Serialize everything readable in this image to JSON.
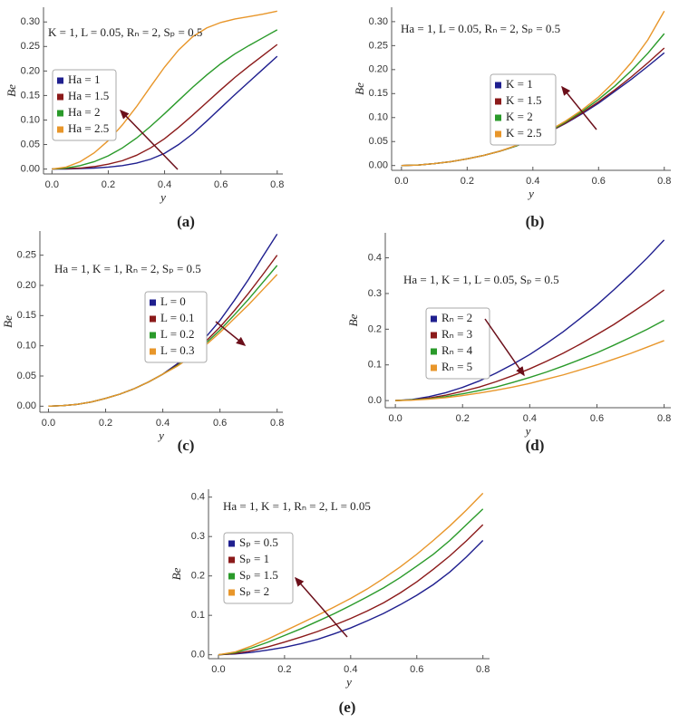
{
  "chart_data": [
    {
      "type": "line",
      "panel_label": "(a)",
      "annotation": "K = 1, L = 0.05, Rₙ = 2, Sₚ = 0.5",
      "x_label": "y",
      "y_label": "Be",
      "x": [
        0,
        0.05,
        0.1,
        0.15,
        0.2,
        0.25,
        0.3,
        0.35,
        0.4,
        0.45,
        0.5,
        0.55,
        0.6,
        0.65,
        0.7,
        0.75,
        0.8
      ],
      "series": [
        {
          "name": "Ha = 1",
          "color": "#1f1f8f",
          "values": [
            0,
            0,
            0.001,
            0.002,
            0.004,
            0.007,
            0.012,
            0.02,
            0.032,
            0.05,
            0.072,
            0.098,
            0.125,
            0.152,
            0.178,
            0.204,
            0.23
          ]
        },
        {
          "name": "Ha = 1.5",
          "color": "#8b1a1a",
          "values": [
            0,
            0.001,
            0.002,
            0.005,
            0.01,
            0.017,
            0.028,
            0.043,
            0.062,
            0.085,
            0.11,
            0.136,
            0.162,
            0.187,
            0.21,
            0.232,
            0.254
          ]
        },
        {
          "name": "Ha = 2",
          "color": "#2a9a2a",
          "values": [
            0,
            0.002,
            0.007,
            0.015,
            0.027,
            0.043,
            0.063,
            0.087,
            0.113,
            0.14,
            0.167,
            0.192,
            0.215,
            0.235,
            0.252,
            0.268,
            0.284
          ]
        },
        {
          "name": "Ha = 2.5",
          "color": "#e8962a",
          "values": [
            0,
            0.004,
            0.015,
            0.033,
            0.058,
            0.09,
            0.127,
            0.168,
            0.208,
            0.243,
            0.27,
            0.288,
            0.299,
            0.306,
            0.311,
            0.316,
            0.322
          ]
        }
      ],
      "xlim": [
        -0.03,
        0.82
      ],
      "ylim": [
        -0.01,
        0.33
      ],
      "xticks": [
        {
          "value": 0,
          "label": "0.0"
        },
        {
          "value": 0.2,
          "label": "0.2"
        },
        {
          "value": 0.4,
          "label": "0.4"
        },
        {
          "value": 0.6,
          "label": "0.6"
        },
        {
          "value": 0.8,
          "label": "0.8"
        }
      ],
      "yticks": [
        {
          "value": 0,
          "label": "0.00"
        },
        {
          "value": 0.05,
          "label": "0.05"
        },
        {
          "value": 0.1,
          "label": "0.10"
        },
        {
          "value": 0.15,
          "label": "0.15"
        },
        {
          "value": 0.2,
          "label": "0.20"
        },
        {
          "value": 0.25,
          "label": "0.25"
        },
        {
          "value": 0.3,
          "label": "0.30"
        }
      ]
    },
    {
      "type": "line",
      "panel_label": "(b)",
      "annotation": "Ha = 1, L = 0.05, Rₙ = 2, Sₚ = 0.5",
      "x_label": "y",
      "y_label": "Be",
      "x": [
        0,
        0.05,
        0.1,
        0.15,
        0.2,
        0.25,
        0.3,
        0.35,
        0.4,
        0.45,
        0.5,
        0.55,
        0.6,
        0.65,
        0.7,
        0.75,
        0.8
      ],
      "series": [
        {
          "name": "K = 1",
          "color": "#1f1f8f",
          "values": [
            0,
            0.001,
            0.004,
            0.008,
            0.014,
            0.021,
            0.03,
            0.041,
            0.054,
            0.07,
            0.088,
            0.108,
            0.13,
            0.155,
            0.18,
            0.207,
            0.235
          ]
        },
        {
          "name": "K = 1.5",
          "color": "#8b1a1a",
          "values": [
            0,
            0.001,
            0.004,
            0.008,
            0.014,
            0.021,
            0.03,
            0.041,
            0.054,
            0.07,
            0.089,
            0.11,
            0.133,
            0.158,
            0.185,
            0.214,
            0.245
          ]
        },
        {
          "name": "K = 2",
          "color": "#2a9a2a",
          "values": [
            0,
            0.001,
            0.004,
            0.008,
            0.014,
            0.021,
            0.03,
            0.041,
            0.055,
            0.071,
            0.091,
            0.113,
            0.138,
            0.166,
            0.198,
            0.234,
            0.275
          ]
        },
        {
          "name": "K = 2.5",
          "color": "#e8962a",
          "values": [
            0,
            0.001,
            0.004,
            0.008,
            0.014,
            0.021,
            0.03,
            0.042,
            0.056,
            0.073,
            0.093,
            0.116,
            0.143,
            0.176,
            0.215,
            0.262,
            0.322
          ]
        }
      ],
      "xlim": [
        -0.03,
        0.82
      ],
      "ylim": [
        -0.01,
        0.33
      ],
      "xticks": [
        {
          "value": 0,
          "label": "0.0"
        },
        {
          "value": 0.2,
          "label": "0.2"
        },
        {
          "value": 0.4,
          "label": "0.4"
        },
        {
          "value": 0.6,
          "label": "0.6"
        },
        {
          "value": 0.8,
          "label": "0.8"
        }
      ],
      "yticks": [
        {
          "value": 0,
          "label": "0.00"
        },
        {
          "value": 0.05,
          "label": "0.05"
        },
        {
          "value": 0.1,
          "label": "0.10"
        },
        {
          "value": 0.15,
          "label": "0.15"
        },
        {
          "value": 0.2,
          "label": "0.20"
        },
        {
          "value": 0.25,
          "label": "0.25"
        },
        {
          "value": 0.3,
          "label": "0.30"
        }
      ]
    },
    {
      "type": "line",
      "panel_label": "(c)",
      "annotation": "Ha = 1, K = 1, Rₙ = 2, Sₚ = 0.5",
      "x_label": "y",
      "y_label": "Be",
      "x": [
        0,
        0.05,
        0.1,
        0.15,
        0.2,
        0.25,
        0.3,
        0.35,
        0.4,
        0.45,
        0.5,
        0.55,
        0.6,
        0.65,
        0.7,
        0.75,
        0.8
      ],
      "series": [
        {
          "name": "L = 0",
          "color": "#1f1f8f",
          "values": [
            0,
            0.001,
            0.003,
            0.007,
            0.013,
            0.02,
            0.029,
            0.04,
            0.053,
            0.07,
            0.09,
            0.114,
            0.142,
            0.175,
            0.21,
            0.248,
            0.285
          ]
        },
        {
          "name": "L = 0.1",
          "color": "#8b1a1a",
          "values": [
            0,
            0.001,
            0.003,
            0.007,
            0.013,
            0.02,
            0.029,
            0.04,
            0.053,
            0.068,
            0.086,
            0.107,
            0.131,
            0.158,
            0.187,
            0.218,
            0.25
          ]
        },
        {
          "name": "L = 0.2",
          "color": "#2a9a2a",
          "values": [
            0,
            0.001,
            0.003,
            0.007,
            0.013,
            0.02,
            0.029,
            0.04,
            0.053,
            0.067,
            0.084,
            0.104,
            0.126,
            0.151,
            0.177,
            0.205,
            0.233
          ]
        },
        {
          "name": "L = 0.3",
          "color": "#e8962a",
          "values": [
            0,
            0.001,
            0.003,
            0.007,
            0.013,
            0.02,
            0.029,
            0.04,
            0.053,
            0.066,
            0.082,
            0.101,
            0.122,
            0.145,
            0.168,
            0.193,
            0.218
          ]
        }
      ],
      "xlim": [
        -0.03,
        0.82
      ],
      "ylim": [
        -0.01,
        0.29
      ],
      "xticks": [
        {
          "value": 0,
          "label": "0.0"
        },
        {
          "value": 0.2,
          "label": "0.2"
        },
        {
          "value": 0.4,
          "label": "0.4"
        },
        {
          "value": 0.6,
          "label": "0.6"
        },
        {
          "value": 0.8,
          "label": "0.8"
        }
      ],
      "yticks": [
        {
          "value": 0,
          "label": "0.00"
        },
        {
          "value": 0.05,
          "label": "0.05"
        },
        {
          "value": 0.1,
          "label": "0.10"
        },
        {
          "value": 0.15,
          "label": "0.15"
        },
        {
          "value": 0.2,
          "label": "0.20"
        },
        {
          "value": 0.25,
          "label": "0.25"
        }
      ]
    },
    {
      "type": "line",
      "panel_label": "(d)",
      "annotation": "Ha = 1, K = 1, L = 0.05, Sₚ = 0.5",
      "x_label": "y",
      "y_label": "Be",
      "x": [
        0,
        0.05,
        0.1,
        0.15,
        0.2,
        0.25,
        0.3,
        0.35,
        0.4,
        0.45,
        0.5,
        0.55,
        0.6,
        0.65,
        0.7,
        0.75,
        0.8
      ],
      "series": [
        {
          "name": "Rₙ = 2",
          "color": "#1f1f8f",
          "values": [
            0,
            0.003,
            0.011,
            0.022,
            0.037,
            0.055,
            0.077,
            0.102,
            0.129,
            0.16,
            0.193,
            0.23,
            0.268,
            0.31,
            0.354,
            0.4,
            0.45
          ]
        },
        {
          "name": "Rₙ = 3",
          "color": "#8b1a1a",
          "values": [
            0,
            0.002,
            0.007,
            0.015,
            0.026,
            0.038,
            0.053,
            0.07,
            0.089,
            0.11,
            0.133,
            0.158,
            0.185,
            0.213,
            0.244,
            0.276,
            0.31
          ]
        },
        {
          "name": "Rₙ = 4",
          "color": "#2a9a2a",
          "values": [
            0,
            0.002,
            0.005,
            0.011,
            0.019,
            0.028,
            0.038,
            0.051,
            0.065,
            0.08,
            0.097,
            0.115,
            0.134,
            0.155,
            0.177,
            0.2,
            0.225
          ]
        },
        {
          "name": "Rₙ = 5",
          "color": "#e8962a",
          "values": [
            0,
            0.001,
            0.004,
            0.008,
            0.014,
            0.021,
            0.029,
            0.038,
            0.048,
            0.06,
            0.072,
            0.086,
            0.1,
            0.116,
            0.132,
            0.15,
            0.168
          ]
        }
      ],
      "xlim": [
        -0.03,
        0.82
      ],
      "ylim": [
        -0.02,
        0.47
      ],
      "xticks": [
        {
          "value": 0,
          "label": "0.0"
        },
        {
          "value": 0.2,
          "label": "0.2"
        },
        {
          "value": 0.4,
          "label": "0.4"
        },
        {
          "value": 0.6,
          "label": "0.6"
        },
        {
          "value": 0.8,
          "label": "0.8"
        }
      ],
      "yticks": [
        {
          "value": 0,
          "label": "0.0"
        },
        {
          "value": 0.1,
          "label": "0.1"
        },
        {
          "value": 0.2,
          "label": "0.2"
        },
        {
          "value": 0.3,
          "label": "0.3"
        },
        {
          "value": 0.4,
          "label": "0.4"
        }
      ]
    },
    {
      "type": "line",
      "panel_label": "(e)",
      "annotation": "Ha = 1, K = 1, Rₙ = 2, L = 0.05",
      "x_label": "y",
      "y_label": "Be",
      "x": [
        0,
        0.05,
        0.1,
        0.15,
        0.2,
        0.25,
        0.3,
        0.35,
        0.4,
        0.45,
        0.5,
        0.55,
        0.6,
        0.65,
        0.7,
        0.75,
        0.8
      ],
      "series": [
        {
          "name": "Sₚ = 0.5",
          "color": "#1f1f8f",
          "values": [
            0,
            0.002,
            0.006,
            0.012,
            0.019,
            0.028,
            0.039,
            0.053,
            0.068,
            0.086,
            0.105,
            0.127,
            0.151,
            0.178,
            0.21,
            0.248,
            0.29
          ]
        },
        {
          "name": "Sₚ = 1",
          "color": "#8b1a1a",
          "values": [
            0,
            0.003,
            0.01,
            0.02,
            0.032,
            0.045,
            0.059,
            0.075,
            0.092,
            0.111,
            0.132,
            0.157,
            0.185,
            0.217,
            0.251,
            0.289,
            0.33
          ]
        },
        {
          "name": "Sₚ = 1.5",
          "color": "#2a9a2a",
          "values": [
            0,
            0.005,
            0.017,
            0.032,
            0.049,
            0.066,
            0.085,
            0.104,
            0.125,
            0.147,
            0.17,
            0.196,
            0.225,
            0.255,
            0.29,
            0.33,
            0.37
          ]
        },
        {
          "name": "Sₚ = 2",
          "color": "#e8962a",
          "values": [
            0,
            0.007,
            0.022,
            0.04,
            0.06,
            0.08,
            0.1,
            0.121,
            0.143,
            0.167,
            0.194,
            0.223,
            0.255,
            0.29,
            0.327,
            0.367,
            0.41
          ]
        }
      ],
      "xlim": [
        -0.03,
        0.82
      ],
      "ylim": [
        -0.01,
        0.42
      ],
      "xticks": [
        {
          "value": 0,
          "label": "0.0"
        },
        {
          "value": 0.2,
          "label": "0.2"
        },
        {
          "value": 0.4,
          "label": "0.4"
        },
        {
          "value": 0.6,
          "label": "0.6"
        },
        {
          "value": 0.8,
          "label": "0.8"
        }
      ],
      "yticks": [
        {
          "value": 0,
          "label": "0.0"
        },
        {
          "value": 0.1,
          "label": "0.1"
        },
        {
          "value": 0.2,
          "label": "0.2"
        },
        {
          "value": 0.3,
          "label": "0.3"
        },
        {
          "value": 0.4,
          "label": "0.4"
        }
      ]
    }
  ]
}
